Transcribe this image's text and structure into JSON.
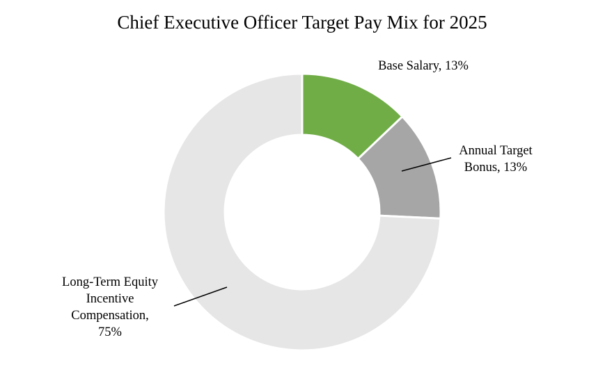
{
  "chart_data": {
    "type": "pie",
    "title": "Chief Executive Officer Target Pay Mix for 2025",
    "slices": [
      {
        "label_lines": [
          "Base Salary, 13%"
        ],
        "value": 13,
        "color": "#70AD47"
      },
      {
        "label_lines": [
          "Annual Target",
          "Bonus, 13%"
        ],
        "value": 13,
        "color": "#A6A6A6"
      },
      {
        "label_lines": [
          "Long-Term Equity",
          "Incentive",
          "Compensation,",
          "75%"
        ],
        "value": 75,
        "color": "#E7E6E6"
      }
    ],
    "legend": "none"
  }
}
